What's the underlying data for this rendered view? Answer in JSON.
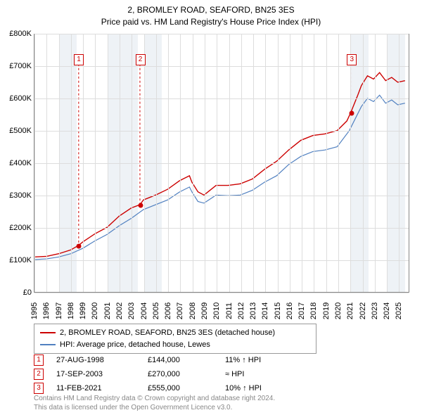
{
  "title": {
    "line1": "2, BROMLEY ROAD, SEAFORD, BN25 3ES",
    "line2": "Price paid vs. HM Land Registry's House Price Index (HPI)",
    "fontsize": 12
  },
  "chart": {
    "type": "line",
    "background_color": "#ffffff",
    "grid_color": "#dddddd",
    "x_range": [
      1995,
      2025.9
    ],
    "y_range": [
      0,
      800000
    ],
    "y_ticks": [
      {
        "v": 0,
        "label": "£0"
      },
      {
        "v": 100000,
        "label": "£100K"
      },
      {
        "v": 200000,
        "label": "£200K"
      },
      {
        "v": 300000,
        "label": "£300K"
      },
      {
        "v": 400000,
        "label": "£400K"
      },
      {
        "v": 500000,
        "label": "£500K"
      },
      {
        "v": 600000,
        "label": "£600K"
      },
      {
        "v": 700000,
        "label": "£700K"
      },
      {
        "v": 800000,
        "label": "£800K"
      }
    ],
    "x_ticks": [
      1995,
      1996,
      1997,
      1998,
      1999,
      2000,
      2001,
      2002,
      2003,
      2004,
      2005,
      2006,
      2007,
      2008,
      2009,
      2010,
      2011,
      2012,
      2013,
      2014,
      2015,
      2016,
      2017,
      2018,
      2019,
      2020,
      2021,
      2022,
      2023,
      2024,
      2025
    ],
    "shade_color": "#e0e8ef",
    "shade_bands": [
      {
        "from": 1997,
        "to": 1998.5
      },
      {
        "from": 2001,
        "to": 2003.5
      },
      {
        "from": 2004,
        "to": 2005.5
      },
      {
        "from": 2021,
        "to": 2022.5
      },
      {
        "from": 2024,
        "to": 2025.5
      }
    ],
    "series": [
      {
        "name": "2, BROMLEY ROAD, SEAFORD, BN25 3ES (detached house)",
        "color": "#cc0000",
        "width": 1.4,
        "points": [
          [
            1995,
            108000
          ],
          [
            1996,
            110000
          ],
          [
            1997,
            118000
          ],
          [
            1998,
            130000
          ],
          [
            1998.65,
            144000
          ],
          [
            1999,
            155000
          ],
          [
            2000,
            180000
          ],
          [
            2001,
            200000
          ],
          [
            2002,
            235000
          ],
          [
            2003,
            260000
          ],
          [
            2003.71,
            270000
          ],
          [
            2004,
            285000
          ],
          [
            2005,
            300000
          ],
          [
            2006,
            318000
          ],
          [
            2007,
            345000
          ],
          [
            2007.8,
            360000
          ],
          [
            2008,
            340000
          ],
          [
            2008.5,
            310000
          ],
          [
            2009,
            300000
          ],
          [
            2009.5,
            315000
          ],
          [
            2010,
            330000
          ],
          [
            2011,
            330000
          ],
          [
            2012,
            335000
          ],
          [
            2013,
            350000
          ],
          [
            2014,
            380000
          ],
          [
            2015,
            405000
          ],
          [
            2016,
            440000
          ],
          [
            2017,
            470000
          ],
          [
            2018,
            485000
          ],
          [
            2019,
            490000
          ],
          [
            2020,
            500000
          ],
          [
            2020.8,
            530000
          ],
          [
            2021.11,
            555000
          ],
          [
            2021.7,
            610000
          ],
          [
            2022,
            640000
          ],
          [
            2022.5,
            670000
          ],
          [
            2023,
            660000
          ],
          [
            2023.5,
            680000
          ],
          [
            2024,
            655000
          ],
          [
            2024.5,
            665000
          ],
          [
            2025,
            650000
          ],
          [
            2025.6,
            655000
          ]
        ]
      },
      {
        "name": "HPI: Average price, detached house, Lewes",
        "color": "#5080c0",
        "width": 1.2,
        "points": [
          [
            1995,
            100000
          ],
          [
            1996,
            102000
          ],
          [
            1997,
            108000
          ],
          [
            1998,
            118000
          ],
          [
            1999,
            135000
          ],
          [
            2000,
            158000
          ],
          [
            2001,
            178000
          ],
          [
            2002,
            205000
          ],
          [
            2003,
            228000
          ],
          [
            2004,
            255000
          ],
          [
            2005,
            270000
          ],
          [
            2006,
            285000
          ],
          [
            2007,
            310000
          ],
          [
            2007.8,
            325000
          ],
          [
            2008,
            310000
          ],
          [
            2008.5,
            280000
          ],
          [
            2009,
            275000
          ],
          [
            2010,
            300000
          ],
          [
            2011,
            298000
          ],
          [
            2012,
            300000
          ],
          [
            2013,
            315000
          ],
          [
            2014,
            340000
          ],
          [
            2015,
            360000
          ],
          [
            2016,
            395000
          ],
          [
            2017,
            420000
          ],
          [
            2018,
            435000
          ],
          [
            2019,
            440000
          ],
          [
            2020,
            450000
          ],
          [
            2021,
            500000
          ],
          [
            2022,
            575000
          ],
          [
            2022.5,
            600000
          ],
          [
            2023,
            590000
          ],
          [
            2023.5,
            610000
          ],
          [
            2024,
            585000
          ],
          [
            2024.5,
            595000
          ],
          [
            2025,
            580000
          ],
          [
            2025.6,
            585000
          ]
        ]
      }
    ],
    "markers": [
      {
        "n": "1",
        "x": 1998.65,
        "y": 144000,
        "box_y": 720000
      },
      {
        "n": "2",
        "x": 2003.71,
        "y": 270000,
        "box_y": 720000
      },
      {
        "n": "3",
        "x": 2021.11,
        "y": 555000,
        "box_y": 720000
      }
    ]
  },
  "legend": {
    "items": [
      {
        "color": "#cc0000",
        "label": "2, BROMLEY ROAD, SEAFORD, BN25 3ES (detached house)"
      },
      {
        "color": "#5080c0",
        "label": "HPI: Average price, detached house, Lewes"
      }
    ]
  },
  "transactions": [
    {
      "n": "1",
      "date": "27-AUG-1998",
      "price": "£144,000",
      "hpi": "11% ↑ HPI"
    },
    {
      "n": "2",
      "date": "17-SEP-2003",
      "price": "£270,000",
      "hpi": "≈ HPI"
    },
    {
      "n": "3",
      "date": "11-FEB-2021",
      "price": "£555,000",
      "hpi": "10% ↑ HPI"
    }
  ],
  "footer": {
    "line1": "Contains HM Land Registry data © Crown copyright and database right 2024.",
    "line2": "This data is licensed under the Open Government Licence v3.0."
  }
}
